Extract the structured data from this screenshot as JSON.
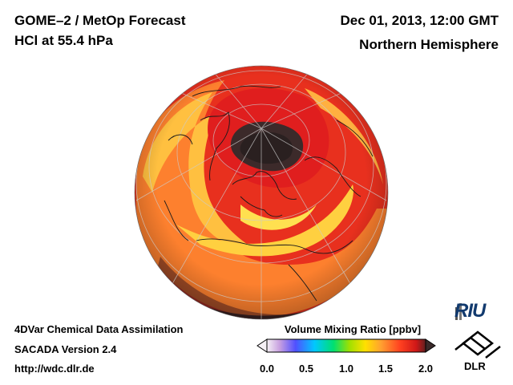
{
  "header": {
    "title_left_1": "GOME–2 / MetOp Forecast",
    "title_left_2": "HCl at 55.4 hPa",
    "title_right_1": "Dec 01, 2013, 12:00 GMT",
    "title_right_2": "Northern Hemisphere"
  },
  "footer": {
    "line1": "4DVar Chemical Data Assimilation",
    "line2": "SACADA Version 2.4",
    "line3": "http://wdc.dlr.de"
  },
  "colorbar": {
    "title": "Volume Mixing Ratio [ppbv]",
    "ticks": [
      "0.0",
      "0.5",
      "1.0",
      "1.5",
      "2.0"
    ],
    "colors": [
      "#f5f0f5",
      "#c8a0e0",
      "#5050ff",
      "#00c8ff",
      "#00e070",
      "#a0e000",
      "#ffe000",
      "#ffa030",
      "#ff4020",
      "#d01818",
      "#602020"
    ]
  },
  "logos": {
    "riu": "RIU",
    "dlr": "DLR"
  },
  "map": {
    "projection": "orthographic",
    "hemisphere": "Northern Hemisphere",
    "palette": {
      "low": "#3a2a2a",
      "mid_red": "#e82020",
      "orange": "#ff8a30",
      "yellow": "#ffd040"
    }
  }
}
